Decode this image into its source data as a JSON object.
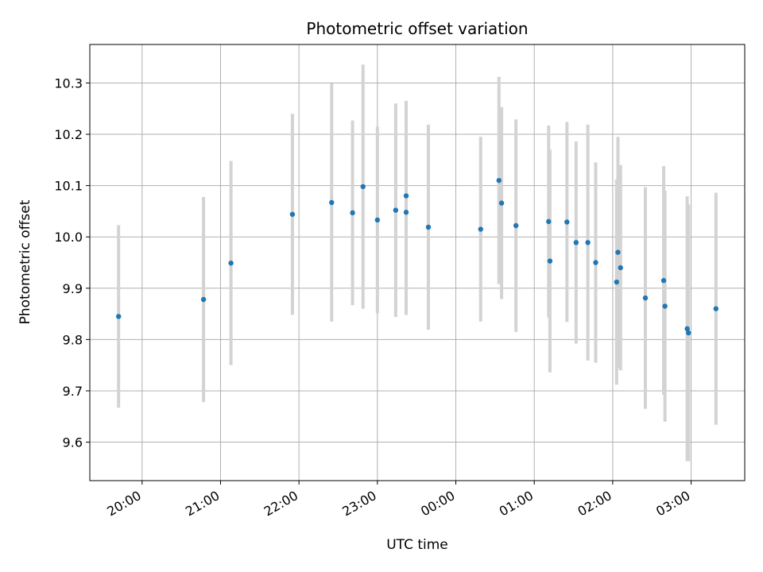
{
  "chart_data": {
    "type": "scatter",
    "title": "Photometric offset variation",
    "xlabel": "UTC time",
    "ylabel": "Photometric offset",
    "grid": true,
    "xlim": [
      "19:20",
      "03:41"
    ],
    "ylim": [
      9.525,
      10.375
    ],
    "x_ticks": [
      "20:00",
      "21:00",
      "22:00",
      "23:00",
      "00:00",
      "01:00",
      "02:00",
      "03:00"
    ],
    "y_ticks": [
      "9.6",
      "9.7",
      "9.8",
      "9.9",
      "10.0",
      "10.1",
      "10.2",
      "10.3"
    ],
    "marker_color": "#1f77b4",
    "errorbar_color": "#d3d3d3",
    "points": [
      {
        "x": "19:42",
        "y": 9.845,
        "err": 0.178
      },
      {
        "x": "20:47",
        "y": 9.878,
        "err": 0.2
      },
      {
        "x": "21:08",
        "y": 9.949,
        "err": 0.199
      },
      {
        "x": "21:55",
        "y": 10.044,
        "err": 0.196
      },
      {
        "x": "22:25",
        "y": 10.067,
        "err": 0.232
      },
      {
        "x": "22:41",
        "y": 10.047,
        "err": 0.18
      },
      {
        "x": "22:49",
        "y": 10.098,
        "err": 0.238
      },
      {
        "x": "23:00",
        "y": 10.033,
        "err": 0.182
      },
      {
        "x": "23:14",
        "y": 10.052,
        "err": 0.208
      },
      {
        "x": "23:22",
        "y": 10.048,
        "err": 0.2
      },
      {
        "x": "23:22",
        "y": 10.08,
        "err": 0.185
      },
      {
        "x": "23:39",
        "y": 10.019,
        "err": 0.2
      },
      {
        "x": "00:19",
        "y": 10.015,
        "err": 0.18
      },
      {
        "x": "00:33",
        "y": 10.11,
        "err": 0.202
      },
      {
        "x": "00:35",
        "y": 10.066,
        "err": 0.187
      },
      {
        "x": "00:46",
        "y": 10.022,
        "err": 0.207
      },
      {
        "x": "01:11",
        "y": 10.03,
        "err": 0.187
      },
      {
        "x": "01:12",
        "y": 9.953,
        "err": 0.217
      },
      {
        "x": "01:25",
        "y": 10.029,
        "err": 0.195
      },
      {
        "x": "01:32",
        "y": 9.989,
        "err": 0.197
      },
      {
        "x": "01:41",
        "y": 9.989,
        "err": 0.23
      },
      {
        "x": "01:47",
        "y": 9.95,
        "err": 0.195
      },
      {
        "x": "02:03",
        "y": 9.912,
        "err": 0.2
      },
      {
        "x": "02:04",
        "y": 9.97,
        "err": 0.225
      },
      {
        "x": "02:06",
        "y": 9.94,
        "err": 0.2
      },
      {
        "x": "02:25",
        "y": 9.881,
        "err": 0.216
      },
      {
        "x": "02:39",
        "y": 9.915,
        "err": 0.223
      },
      {
        "x": "02:40",
        "y": 9.865,
        "err": 0.225
      },
      {
        "x": "02:57",
        "y": 9.821,
        "err": 0.258
      },
      {
        "x": "02:58",
        "y": 9.813,
        "err": 0.25
      },
      {
        "x": "03:19",
        "y": 9.86,
        "err": 0.226
      }
    ]
  }
}
